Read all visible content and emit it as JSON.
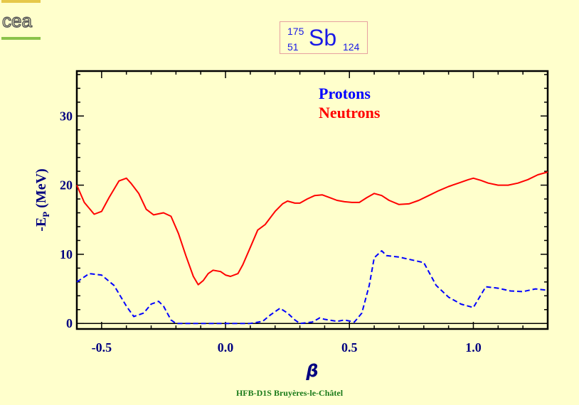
{
  "logo_text": "cea",
  "nucleus": {
    "mass": "175",
    "charge": "51",
    "symbol": "Sb",
    "neutrons": "124"
  },
  "footer": "HFB-D1S Bruyères-le-Châtel",
  "colors": {
    "background": "#ffffcc",
    "axes": "#000000",
    "ticklabel": "#000080",
    "protons": "#0000ff",
    "neutrons": "#ff0000"
  },
  "chart_data": {
    "type": "line",
    "xlabel": "β",
    "ylabel": "-E_P (MeV)",
    "xlim": [
      -0.6,
      1.3
    ],
    "ylim": [
      -0.8,
      36.5
    ],
    "xticks": [
      "-0.5",
      "0.0",
      "0.5",
      "1.0"
    ],
    "yticks": [
      "0",
      "10",
      "20",
      "30"
    ],
    "legend_position": "top-center",
    "series": [
      {
        "name": "Protons",
        "style": "dashed",
        "color": "#0000ff",
        "x": [
          -0.6,
          -0.55,
          -0.5,
          -0.45,
          -0.4,
          -0.37,
          -0.33,
          -0.3,
          -0.27,
          -0.25,
          -0.22,
          -0.2,
          -0.15,
          -0.1,
          -0.05,
          0.0,
          0.05,
          0.1,
          0.15,
          0.18,
          0.22,
          0.25,
          0.28,
          0.3,
          0.35,
          0.38,
          0.4,
          0.45,
          0.48,
          0.52,
          0.55,
          0.58,
          0.6,
          0.63,
          0.65,
          0.7,
          0.75,
          0.8,
          0.85,
          0.9,
          0.95,
          1.0,
          1.05,
          1.1,
          1.15,
          1.2,
          1.25,
          1.3
        ],
        "y": [
          6.0,
          7.2,
          7.0,
          5.5,
          2.5,
          1.0,
          1.5,
          2.8,
          3.2,
          2.5,
          0.5,
          0.0,
          0.0,
          0.0,
          0.0,
          0.0,
          0.0,
          0.0,
          0.3,
          1.2,
          2.2,
          1.5,
          0.5,
          0.0,
          0.2,
          0.8,
          0.6,
          0.3,
          0.5,
          0.2,
          1.5,
          5.5,
          9.5,
          10.5,
          9.8,
          9.6,
          9.2,
          8.8,
          5.5,
          3.8,
          2.8,
          2.3,
          5.3,
          5.1,
          4.7,
          4.6,
          5.0,
          4.8
        ]
      },
      {
        "name": "Neutrons",
        "style": "solid",
        "color": "#ff0000",
        "x": [
          -0.6,
          -0.57,
          -0.53,
          -0.5,
          -0.47,
          -0.43,
          -0.4,
          -0.38,
          -0.35,
          -0.32,
          -0.29,
          -0.25,
          -0.22,
          -0.19,
          -0.16,
          -0.13,
          -0.11,
          -0.09,
          -0.07,
          -0.05,
          -0.02,
          0.0,
          0.02,
          0.05,
          0.07,
          0.1,
          0.13,
          0.16,
          0.2,
          0.23,
          0.25,
          0.28,
          0.3,
          0.33,
          0.36,
          0.39,
          0.42,
          0.45,
          0.48,
          0.51,
          0.54,
          0.57,
          0.6,
          0.63,
          0.66,
          0.7,
          0.74,
          0.78,
          0.82,
          0.86,
          0.9,
          0.94,
          0.98,
          1.0,
          1.03,
          1.06,
          1.1,
          1.14,
          1.18,
          1.22,
          1.26,
          1.3
        ],
        "y": [
          20.0,
          17.5,
          15.8,
          16.2,
          18.2,
          20.6,
          21.0,
          20.2,
          18.8,
          16.5,
          15.7,
          16.0,
          15.5,
          13.0,
          9.8,
          6.8,
          5.6,
          6.2,
          7.2,
          7.7,
          7.5,
          7.0,
          6.8,
          7.2,
          8.5,
          11.0,
          13.5,
          14.3,
          16.2,
          17.3,
          17.7,
          17.4,
          17.4,
          18.0,
          18.5,
          18.6,
          18.2,
          17.8,
          17.6,
          17.5,
          17.5,
          18.2,
          18.8,
          18.5,
          17.8,
          17.2,
          17.3,
          17.8,
          18.5,
          19.2,
          19.8,
          20.3,
          20.8,
          21.0,
          20.7,
          20.3,
          20.0,
          20.0,
          20.3,
          20.8,
          21.5,
          21.9
        ]
      }
    ]
  }
}
